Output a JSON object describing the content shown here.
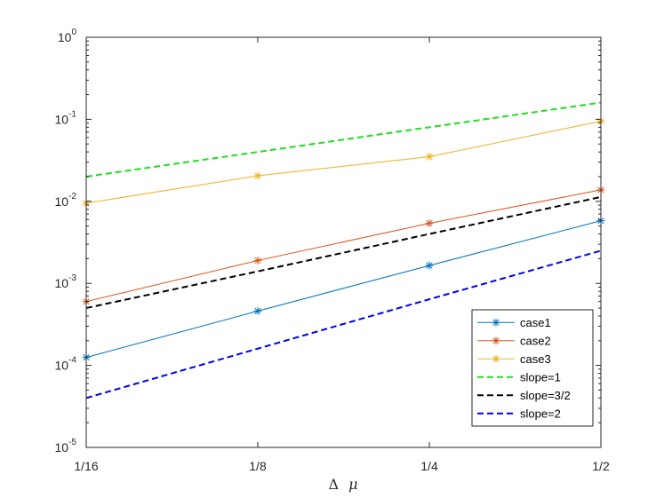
{
  "chart_data": {
    "type": "line",
    "x_scale": "log2",
    "y_scale": "log10",
    "x": [
      0.0625,
      0.125,
      0.25,
      0.5
    ],
    "x_tick_labels": [
      "1/16",
      "1/8",
      "1/4",
      "1/2"
    ],
    "xlabel_symbol": "Δ",
    "xlabel_var": "μ",
    "xlim": [
      0.0625,
      0.5
    ],
    "ylim": [
      1e-05,
      1
    ],
    "y_tick_base": "10",
    "y_tick_exponents": [
      "-5",
      "-4",
      "-3",
      "-2",
      "-1",
      "0"
    ],
    "grid": false,
    "legend_position": "bottom-right",
    "series": [
      {
        "name": "case1",
        "values": [
          0.000125,
          0.00046,
          0.00165,
          0.0058
        ],
        "color": "#0072BD",
        "style": "solid",
        "marker": "asterisk"
      },
      {
        "name": "case2",
        "values": [
          0.0006,
          0.0019,
          0.0054,
          0.0138
        ],
        "color": "#D95319",
        "style": "solid",
        "marker": "asterisk"
      },
      {
        "name": "case3",
        "values": [
          0.0095,
          0.0205,
          0.035,
          0.095
        ],
        "color": "#EDB120",
        "style": "solid",
        "marker": "asterisk"
      },
      {
        "name": "slope=1",
        "values": [
          0.02,
          0.04,
          0.08,
          0.16
        ],
        "color": "#22dd22",
        "style": "dashed",
        "marker": "none"
      },
      {
        "name": "slope=3/2",
        "values": [
          0.0005,
          0.0014,
          0.004,
          0.0113
        ],
        "color": "#000000",
        "style": "dashed",
        "marker": "none"
      },
      {
        "name": "slope=2",
        "values": [
          4e-05,
          0.00016,
          0.00064,
          0.0025
        ],
        "color": "#0000ee",
        "style": "dashed",
        "marker": "none"
      }
    ]
  }
}
